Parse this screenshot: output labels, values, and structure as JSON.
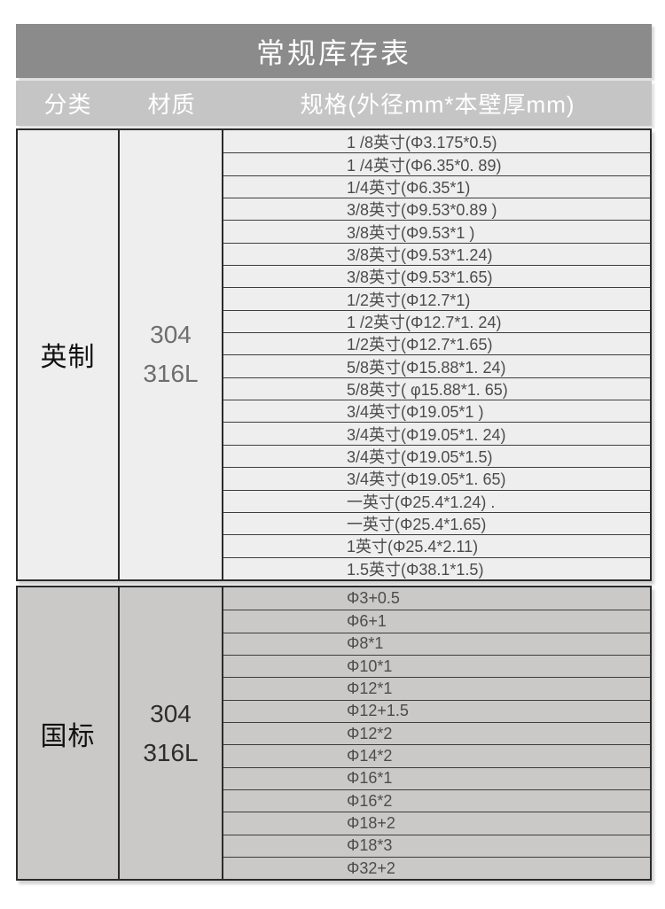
{
  "title": "常规库存表",
  "columns": {
    "category": "分类",
    "material": "材质",
    "spec": "规格(外径mm*本壁厚mm)"
  },
  "groups": [
    {
      "id": "imperial",
      "category": "英制",
      "material_lines": [
        "304",
        "316L"
      ],
      "specs": [
        "1 /8英寸(Φ3.175*0.5)",
        "1 /4英寸(Φ6.35*0. 89)",
        "1/4英寸(Φ6.35*1)",
        "3/8英寸(Φ9.53*0.89 )",
        "3/8英寸(Φ9.53*1 )",
        "3/8英寸(Φ9.53*1.24)",
        "3/8英寸(Φ9.53*1.65)",
        "1/2英寸(Φ12.7*1)",
        "1 /2英寸(Φ12.7*1. 24)",
        "1/2英寸(Φ12.7*1.65)",
        "5/8英寸(Φ15.88*1. 24)",
        "5/8英寸( φ15.88*1. 65)",
        "3/4英寸(Φ19.05*1 )",
        "3/4英寸(Φ19.05*1. 24)",
        "3/4英寸(Φ19.05*1.5)",
        "3/4英寸(Φ19.05*1. 65)",
        "一英寸(Φ25.4*1.24) .",
        "一英寸(Φ25.4*1.65)",
        "1英寸(Φ25.4*2.11)",
        "1.5英寸(Φ38.1*1.5)"
      ]
    },
    {
      "id": "gb",
      "category": "国标",
      "material_lines": [
        "304",
        "316L"
      ],
      "specs": [
        "Φ3+0.5",
        "Φ6+1",
        "Φ8*1",
        "Φ10*1",
        "Φ12*1",
        "Φ12+1.5",
        "Φ12*2",
        "Φ14*2",
        "Φ16*1",
        "Φ16*2",
        "Φ18+2",
        "Φ18*3",
        "Φ32+2"
      ]
    }
  ],
  "colors": {
    "title_bar": "#8c8b8b",
    "header_bar": "#c6c5c5",
    "imperial_row_bg": "#efeeee",
    "gb_row_bg": "#cac9c8",
    "border": "#2b2b2b",
    "spec_text": "#4c4c4c",
    "header_text": "#ffffff"
  }
}
